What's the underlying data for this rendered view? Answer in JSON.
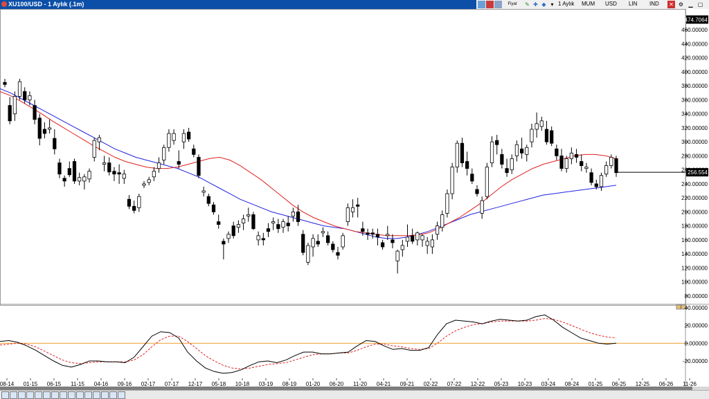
{
  "window": {
    "title": "XU100/USD - 1 Aylık (.1m)",
    "toolbar": {
      "period": "1 Aylık",
      "chart_style": "MUM",
      "currency": "USD",
      "scale": "LIN",
      "indicator": "IND",
      "close_glyph": "✕"
    }
  },
  "price_labels": {
    "last_price": "256.554",
    "high_marker": "474.7064"
  },
  "colors": {
    "ma_fast": "#e02020",
    "ma_slow": "#2020e0",
    "osc_line": "#000000",
    "osc_signal": "#e02020",
    "zero_line": "#f0a030",
    "title_bar": "#0b4fa8"
  },
  "chart_data": [
    {
      "type": "candlestick",
      "title": "XU100/USD - 1 Aylık (.1m)",
      "y_ticks": [
        "460.00000",
        "440.00000",
        "420.00000",
        "400.00000",
        "380.00000",
        "360.00000",
        "340.00000",
        "320.00000",
        "300.00000",
        "280.00000",
        "260.00000",
        "240.00000",
        "220.00000",
        "200.00000",
        "180.00000",
        "160.00000",
        "140.00000",
        "120.00000",
        "100.00000",
        "80.00000"
      ],
      "ylim": [
        70,
        475
      ],
      "x_labels": [
        "08-14",
        "01-15",
        "06-15",
        "11-15",
        "04-16",
        "09-16",
        "02-17",
        "07-17",
        "12-17",
        "05-18",
        "10-18",
        "03-19",
        "08-19",
        "01-20",
        "06-20",
        "11-20",
        "04-21",
        "09-21",
        "02-22",
        "07-22",
        "12-22",
        "05-23",
        "10-23",
        "03-24",
        "08-24",
        "01-25",
        "06-25",
        "12-25",
        "06-26",
        "11-26"
      ],
      "last_value": 256.554,
      "ohlc": [
        {
          "o": 385,
          "h": 390,
          "l": 378,
          "c": 382
        },
        {
          "o": 352,
          "h": 364,
          "l": 325,
          "c": 330
        },
        {
          "o": 340,
          "h": 372,
          "l": 330,
          "c": 365
        },
        {
          "o": 365,
          "h": 390,
          "l": 360,
          "c": 386
        },
        {
          "o": 372,
          "h": 378,
          "l": 355,
          "c": 360
        },
        {
          "o": 360,
          "h": 372,
          "l": 352,
          "c": 366
        },
        {
          "o": 352,
          "h": 360,
          "l": 325,
          "c": 332
        },
        {
          "o": 334,
          "h": 340,
          "l": 295,
          "c": 305
        },
        {
          "o": 318,
          "h": 328,
          "l": 305,
          "c": 312
        },
        {
          "o": 318,
          "h": 332,
          "l": 312,
          "c": 320
        },
        {
          "o": 305,
          "h": 318,
          "l": 282,
          "c": 290
        },
        {
          "o": 270,
          "h": 276,
          "l": 248,
          "c": 254
        },
        {
          "o": 248,
          "h": 252,
          "l": 236,
          "c": 244
        },
        {
          "o": 262,
          "h": 272,
          "l": 250,
          "c": 253
        },
        {
          "o": 272,
          "h": 276,
          "l": 240,
          "c": 244
        },
        {
          "o": 244,
          "h": 256,
          "l": 238,
          "c": 249
        },
        {
          "o": 244,
          "h": 254,
          "l": 232,
          "c": 250
        },
        {
          "o": 247,
          "h": 262,
          "l": 242,
          "c": 258
        },
        {
          "o": 278,
          "h": 306,
          "l": 272,
          "c": 302
        },
        {
          "o": 300,
          "h": 310,
          "l": 288,
          "c": 306
        },
        {
          "o": 268,
          "h": 280,
          "l": 258,
          "c": 270
        },
        {
          "o": 270,
          "h": 278,
          "l": 252,
          "c": 257
        },
        {
          "o": 258,
          "h": 264,
          "l": 244,
          "c": 254
        },
        {
          "o": 256,
          "h": 268,
          "l": 240,
          "c": 254
        },
        {
          "o": 248,
          "h": 260,
          "l": 240,
          "c": 254
        },
        {
          "o": 218,
          "h": 224,
          "l": 204,
          "c": 208
        },
        {
          "o": 208,
          "h": 216,
          "l": 198,
          "c": 202
        },
        {
          "o": 206,
          "h": 226,
          "l": 200,
          "c": 222
        },
        {
          "o": 238,
          "h": 244,
          "l": 234,
          "c": 240
        },
        {
          "o": 242,
          "h": 250,
          "l": 238,
          "c": 246
        },
        {
          "o": 250,
          "h": 264,
          "l": 244,
          "c": 258
        },
        {
          "o": 262,
          "h": 278,
          "l": 256,
          "c": 270
        },
        {
          "o": 274,
          "h": 296,
          "l": 268,
          "c": 292
        },
        {
          "o": 292,
          "h": 318,
          "l": 286,
          "c": 312
        },
        {
          "o": 302,
          "h": 318,
          "l": 296,
          "c": 312
        },
        {
          "o": 272,
          "h": 288,
          "l": 262,
          "c": 268
        },
        {
          "o": 300,
          "h": 318,
          "l": 290,
          "c": 312
        },
        {
          "o": 314,
          "h": 320,
          "l": 300,
          "c": 304
        },
        {
          "o": 290,
          "h": 296,
          "l": 278,
          "c": 282
        },
        {
          "o": 278,
          "h": 282,
          "l": 248,
          "c": 252
        },
        {
          "o": 228,
          "h": 236,
          "l": 222,
          "c": 230
        },
        {
          "o": 222,
          "h": 226,
          "l": 208,
          "c": 212
        },
        {
          "o": 210,
          "h": 214,
          "l": 196,
          "c": 200
        },
        {
          "o": 186,
          "h": 196,
          "l": 176,
          "c": 182
        },
        {
          "o": 158,
          "h": 162,
          "l": 132,
          "c": 154
        },
        {
          "o": 162,
          "h": 172,
          "l": 156,
          "c": 168
        },
        {
          "o": 180,
          "h": 186,
          "l": 162,
          "c": 166
        },
        {
          "o": 178,
          "h": 188,
          "l": 170,
          "c": 182
        },
        {
          "o": 184,
          "h": 196,
          "l": 174,
          "c": 190
        },
        {
          "o": 194,
          "h": 206,
          "l": 186,
          "c": 196
        },
        {
          "o": 196,
          "h": 200,
          "l": 174,
          "c": 176
        },
        {
          "o": 160,
          "h": 172,
          "l": 152,
          "c": 166
        },
        {
          "o": 162,
          "h": 170,
          "l": 152,
          "c": 160
        },
        {
          "o": 176,
          "h": 184,
          "l": 164,
          "c": 172
        },
        {
          "o": 184,
          "h": 192,
          "l": 174,
          "c": 186
        },
        {
          "o": 182,
          "h": 190,
          "l": 170,
          "c": 176
        },
        {
          "o": 178,
          "h": 190,
          "l": 170,
          "c": 186
        },
        {
          "o": 184,
          "h": 194,
          "l": 172,
          "c": 180
        },
        {
          "o": 194,
          "h": 206,
          "l": 186,
          "c": 200
        },
        {
          "o": 200,
          "h": 210,
          "l": 180,
          "c": 186
        },
        {
          "o": 168,
          "h": 174,
          "l": 138,
          "c": 142
        },
        {
          "o": 128,
          "h": 156,
          "l": 124,
          "c": 152
        },
        {
          "o": 150,
          "h": 168,
          "l": 136,
          "c": 162
        },
        {
          "o": 158,
          "h": 168,
          "l": 150,
          "c": 154
        },
        {
          "o": 170,
          "h": 178,
          "l": 164,
          "c": 172
        },
        {
          "o": 166,
          "h": 172,
          "l": 152,
          "c": 156
        },
        {
          "o": 154,
          "h": 158,
          "l": 142,
          "c": 146
        },
        {
          "o": 142,
          "h": 150,
          "l": 132,
          "c": 138
        },
        {
          "o": 150,
          "h": 170,
          "l": 146,
          "c": 166
        },
        {
          "o": 186,
          "h": 212,
          "l": 180,
          "c": 206
        },
        {
          "o": 200,
          "h": 218,
          "l": 192,
          "c": 206
        },
        {
          "o": 210,
          "h": 220,
          "l": 192,
          "c": 208
        },
        {
          "o": 176,
          "h": 186,
          "l": 166,
          "c": 172
        },
        {
          "o": 170,
          "h": 176,
          "l": 160,
          "c": 168
        },
        {
          "o": 170,
          "h": 176,
          "l": 162,
          "c": 168
        },
        {
          "o": 168,
          "h": 176,
          "l": 152,
          "c": 164
        },
        {
          "o": 156,
          "h": 160,
          "l": 146,
          "c": 150
        },
        {
          "o": 166,
          "h": 180,
          "l": 160,
          "c": 168
        },
        {
          "o": 160,
          "h": 168,
          "l": 148,
          "c": 156
        },
        {
          "o": 130,
          "h": 146,
          "l": 112,
          "c": 144
        },
        {
          "o": 146,
          "h": 160,
          "l": 136,
          "c": 152
        },
        {
          "o": 158,
          "h": 182,
          "l": 150,
          "c": 164
        },
        {
          "o": 166,
          "h": 176,
          "l": 154,
          "c": 158
        },
        {
          "o": 160,
          "h": 172,
          "l": 152,
          "c": 170
        },
        {
          "o": 160,
          "h": 168,
          "l": 150,
          "c": 166
        },
        {
          "o": 152,
          "h": 164,
          "l": 140,
          "c": 158
        },
        {
          "o": 150,
          "h": 168,
          "l": 140,
          "c": 160
        },
        {
          "o": 168,
          "h": 186,
          "l": 160,
          "c": 180
        },
        {
          "o": 178,
          "h": 202,
          "l": 172,
          "c": 196
        },
        {
          "o": 198,
          "h": 232,
          "l": 192,
          "c": 226
        },
        {
          "o": 226,
          "h": 270,
          "l": 218,
          "c": 264
        },
        {
          "o": 264,
          "h": 302,
          "l": 256,
          "c": 298
        },
        {
          "o": 298,
          "h": 306,
          "l": 264,
          "c": 270
        },
        {
          "o": 272,
          "h": 286,
          "l": 252,
          "c": 262
        },
        {
          "o": 254,
          "h": 262,
          "l": 240,
          "c": 244
        },
        {
          "o": 232,
          "h": 238,
          "l": 222,
          "c": 226
        },
        {
          "o": 198,
          "h": 222,
          "l": 190,
          "c": 216
        },
        {
          "o": 222,
          "h": 270,
          "l": 218,
          "c": 264
        },
        {
          "o": 270,
          "h": 308,
          "l": 264,
          "c": 300
        },
        {
          "o": 302,
          "h": 310,
          "l": 282,
          "c": 296
        },
        {
          "o": 282,
          "h": 290,
          "l": 262,
          "c": 268
        },
        {
          "o": 262,
          "h": 276,
          "l": 250,
          "c": 256
        },
        {
          "o": 260,
          "h": 282,
          "l": 254,
          "c": 276
        },
        {
          "o": 280,
          "h": 302,
          "l": 272,
          "c": 296
        },
        {
          "o": 290,
          "h": 306,
          "l": 276,
          "c": 284
        },
        {
          "o": 282,
          "h": 296,
          "l": 272,
          "c": 292
        },
        {
          "o": 300,
          "h": 326,
          "l": 292,
          "c": 318
        },
        {
          "o": 318,
          "h": 342,
          "l": 306,
          "c": 326
        },
        {
          "o": 322,
          "h": 336,
          "l": 316,
          "c": 330
        },
        {
          "o": 318,
          "h": 330,
          "l": 296,
          "c": 300
        },
        {
          "o": 316,
          "h": 322,
          "l": 294,
          "c": 298
        },
        {
          "o": 290,
          "h": 296,
          "l": 274,
          "c": 280
        },
        {
          "o": 280,
          "h": 290,
          "l": 258,
          "c": 262
        },
        {
          "o": 262,
          "h": 280,
          "l": 256,
          "c": 276
        },
        {
          "o": 276,
          "h": 292,
          "l": 268,
          "c": 284
        },
        {
          "o": 282,
          "h": 290,
          "l": 270,
          "c": 278
        },
        {
          "o": 272,
          "h": 282,
          "l": 258,
          "c": 266
        },
        {
          "o": 262,
          "h": 270,
          "l": 256,
          "c": 264
        },
        {
          "o": 256,
          "h": 262,
          "l": 238,
          "c": 242
        },
        {
          "o": 240,
          "h": 246,
          "l": 232,
          "c": 236
        },
        {
          "o": 236,
          "h": 256,
          "l": 230,
          "c": 252
        },
        {
          "o": 254,
          "h": 272,
          "l": 250,
          "c": 266
        },
        {
          "o": 266,
          "h": 282,
          "l": 262,
          "c": 278
        },
        {
          "o": 276,
          "h": 280,
          "l": 250,
          "c": 256
        }
      ],
      "ma_fast": [
        372,
        366,
        358,
        349,
        340,
        330,
        321,
        312,
        303,
        294,
        286,
        278,
        272,
        268,
        264,
        262,
        262,
        264,
        268,
        272,
        276,
        278,
        274,
        266,
        256,
        246,
        234,
        222,
        210,
        200,
        192,
        186,
        180,
        176,
        172,
        170,
        168,
        166,
        166,
        166,
        167,
        170,
        176,
        184,
        192,
        202,
        212,
        224,
        236,
        246,
        254,
        262,
        268,
        272,
        276,
        280,
        282,
        282,
        280,
        276
      ],
      "ma_slow": [
        376,
        370,
        362,
        354,
        346,
        338,
        330,
        322,
        314,
        306,
        298,
        290,
        284,
        278,
        274,
        270,
        266,
        262,
        256,
        250,
        242,
        234,
        226,
        218,
        212,
        206,
        200,
        196,
        192,
        188,
        184,
        180,
        178,
        176,
        172,
        168,
        164,
        162,
        162,
        164,
        168,
        172,
        178,
        184,
        190,
        196,
        200,
        204,
        208,
        212,
        216,
        220,
        224,
        226,
        228,
        230,
        232,
        234,
        236,
        238
      ],
      "line_colors": {
        "ma_fast": "#e02020",
        "ma_slow": "#2020e0"
      }
    },
    {
      "type": "line",
      "y_ticks": [
        "40.00000",
        "20.00000",
        "0.000000",
        "-20.00000"
      ],
      "ylim": [
        -38,
        44
      ],
      "series": [
        {
          "values": [
            2,
            3,
            1,
            -3,
            -8,
            -14,
            -20,
            -25,
            -27,
            -24,
            -20,
            -20,
            -21,
            -21,
            -22,
            -16,
            -4,
            8,
            13,
            12,
            6,
            -10,
            -20,
            -28,
            -32,
            -34,
            -33,
            -30,
            -25,
            -21,
            -20,
            -22,
            -19,
            -14,
            -10,
            -10,
            -12,
            -12,
            -11,
            -10,
            -3,
            3,
            2,
            -3,
            -7,
            -6,
            -8,
            -8,
            -5,
            10,
            22,
            26,
            25,
            24,
            22,
            25,
            27,
            26,
            25,
            26,
            30,
            32,
            26,
            18,
            12,
            6,
            3,
            0,
            -1,
            0
          ]
        },
        {
          "values": [
            -2,
            -1,
            0,
            -1,
            -4,
            -9,
            -14,
            -19,
            -22,
            -23,
            -22,
            -21,
            -21,
            -21,
            -21,
            -19,
            -13,
            -4,
            4,
            8,
            8,
            2,
            -6,
            -14,
            -20,
            -25,
            -28,
            -29,
            -28,
            -26,
            -24,
            -23,
            -22,
            -19,
            -16,
            -13,
            -12,
            -12,
            -11,
            -11,
            -8,
            -4,
            -1,
            -1,
            -3,
            -4,
            -6,
            -7,
            -6,
            0,
            8,
            14,
            18,
            21,
            22,
            24,
            25,
            25,
            25,
            25,
            26,
            28,
            27,
            24,
            20,
            16,
            12,
            9,
            7,
            6
          ]
        }
      ],
      "zero_line": 0
    }
  ]
}
